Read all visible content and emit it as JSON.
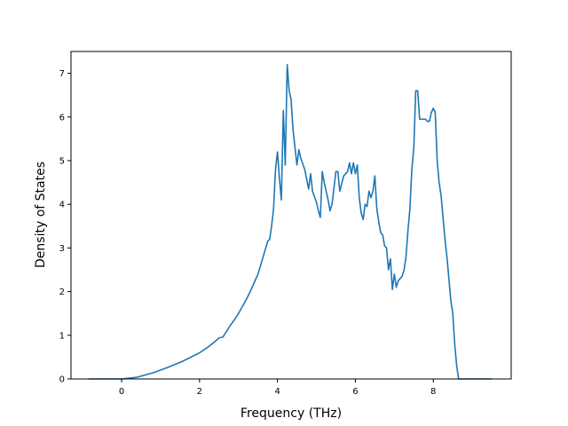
{
  "chart_data": {
    "type": "line",
    "title": "",
    "xlabel": "Frequency (THz)",
    "ylabel": "Density of States",
    "xlim": [
      -1.3,
      10.0
    ],
    "ylim": [
      0,
      7.5
    ],
    "xticks": [
      0,
      2,
      4,
      6,
      8
    ],
    "yticks": [
      0,
      1,
      2,
      3,
      4,
      5,
      6,
      7
    ],
    "grid": false,
    "legend": "none",
    "line_color": "#1f77b4",
    "series": [
      {
        "x": [
          -0.85,
          0.0,
          0.4,
          0.8,
          1.2,
          1.6,
          2.0,
          2.2,
          2.4,
          2.5,
          2.6,
          2.7,
          2.8,
          2.9,
          3.0,
          3.1,
          3.2,
          3.3,
          3.4,
          3.5,
          3.6,
          3.7,
          3.75,
          3.8,
          3.85,
          3.9,
          3.95,
          4.0,
          4.05,
          4.1,
          4.15,
          4.2,
          4.25,
          4.3,
          4.35,
          4.4,
          4.45,
          4.5,
          4.55,
          4.6,
          4.7,
          4.8,
          4.85,
          4.9,
          5.0,
          5.05,
          5.1,
          5.15,
          5.2,
          5.3,
          5.35,
          5.4,
          5.5,
          5.55,
          5.6,
          5.7,
          5.75,
          5.8,
          5.85,
          5.9,
          5.95,
          6.0,
          6.05,
          6.1,
          6.15,
          6.2,
          6.25,
          6.3,
          6.35,
          6.4,
          6.45,
          6.5,
          6.55,
          6.6,
          6.65,
          6.7,
          6.75,
          6.8,
          6.85,
          6.9,
          6.95,
          7.0,
          7.05,
          7.1,
          7.15,
          7.2,
          7.25,
          7.3,
          7.35,
          7.4,
          7.45,
          7.5,
          7.55,
          7.6,
          7.65,
          7.7,
          7.75,
          7.8,
          7.85,
          7.9,
          7.95,
          8.0,
          8.05,
          8.1,
          8.15,
          8.2,
          8.25,
          8.3,
          8.35,
          8.4,
          8.45,
          8.5,
          8.55,
          8.6,
          8.65,
          8.7,
          9.0,
          9.5
        ],
        "values": [
          0,
          0,
          0.04,
          0.14,
          0.27,
          0.42,
          0.6,
          0.72,
          0.86,
          0.94,
          0.96,
          1.1,
          1.24,
          1.36,
          1.5,
          1.66,
          1.82,
          2.0,
          2.2,
          2.4,
          2.7,
          3.0,
          3.15,
          3.2,
          3.5,
          3.9,
          4.8,
          5.2,
          4.6,
          4.1,
          6.15,
          4.9,
          7.2,
          6.6,
          6.4,
          5.7,
          5.3,
          4.9,
          5.25,
          5.05,
          4.8,
          4.35,
          4.7,
          4.3,
          4.05,
          3.85,
          3.7,
          4.75,
          4.5,
          4.1,
          3.85,
          4.0,
          4.75,
          4.75,
          4.3,
          4.65,
          4.7,
          4.75,
          4.95,
          4.7,
          4.95,
          4.7,
          4.9,
          4.15,
          3.8,
          3.65,
          4.0,
          3.95,
          4.3,
          4.15,
          4.3,
          4.65,
          3.9,
          3.6,
          3.35,
          3.3,
          3.05,
          3.0,
          2.5,
          2.75,
          2.05,
          2.4,
          2.1,
          2.25,
          2.3,
          2.35,
          2.5,
          2.8,
          3.4,
          3.9,
          4.8,
          5.3,
          6.6,
          6.6,
          5.95,
          5.95,
          5.95,
          5.95,
          5.9,
          5.9,
          6.1,
          6.2,
          6.1,
          5.0,
          4.5,
          4.2,
          3.7,
          3.2,
          2.8,
          2.3,
          1.8,
          1.5,
          0.8,
          0.3,
          0.0,
          0.0,
          0.0,
          0.0
        ]
      }
    ]
  }
}
